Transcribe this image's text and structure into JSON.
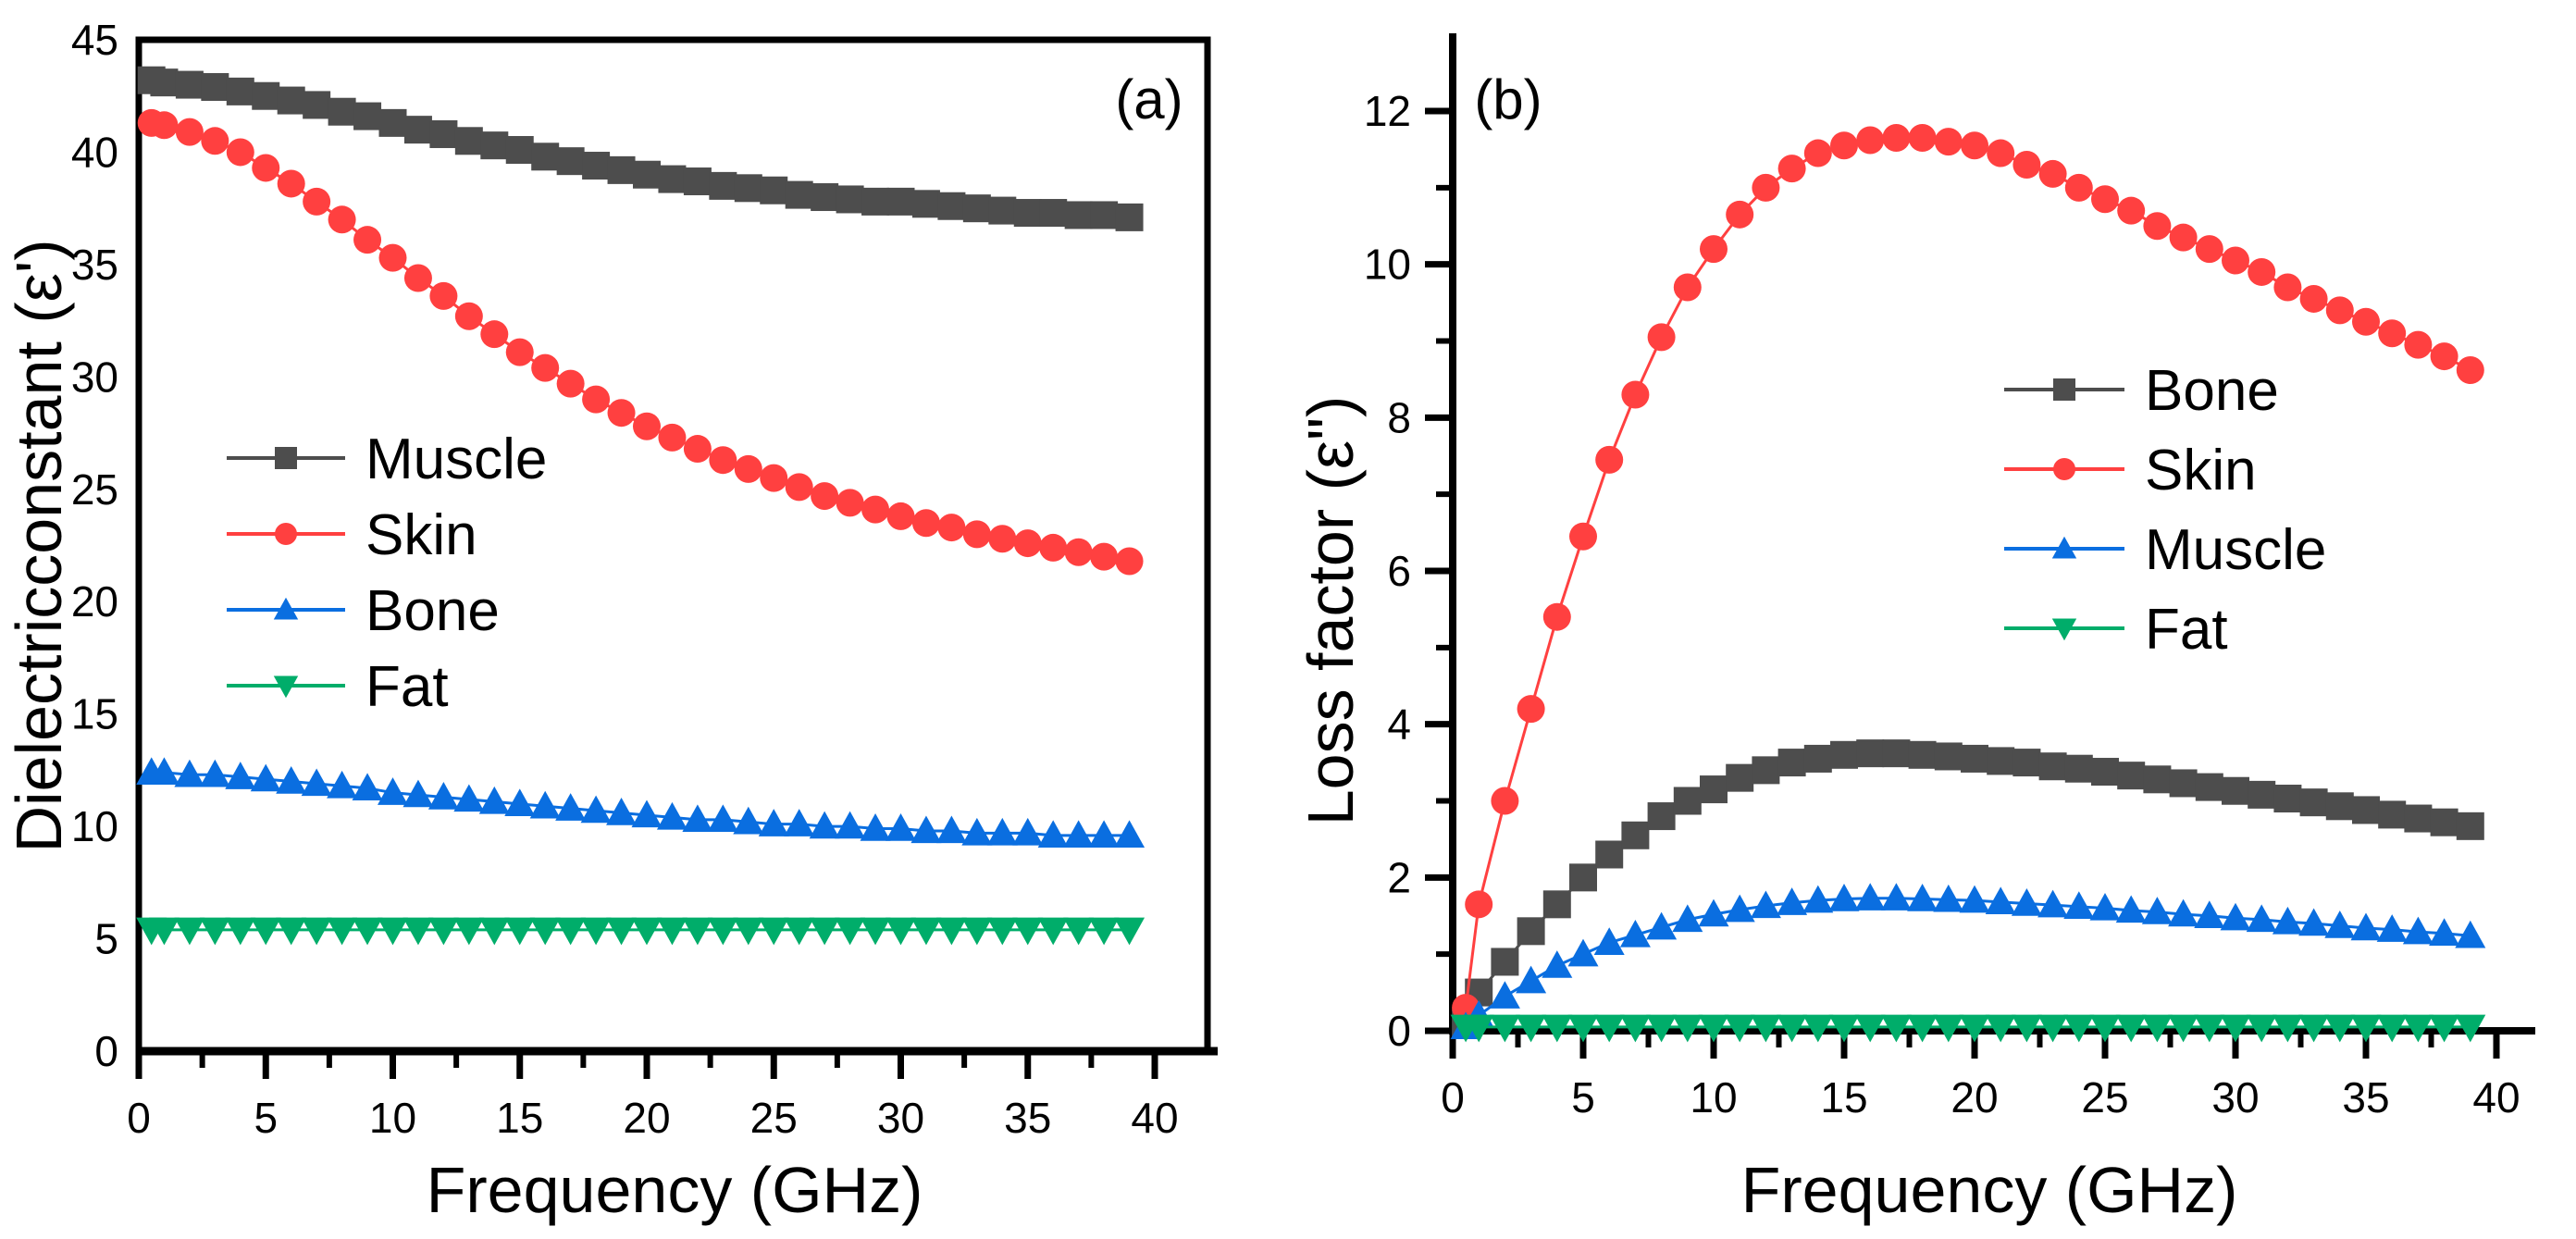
{
  "chart_data": [
    {
      "type": "line",
      "panel_label": "(a)",
      "xlabel": "Frequency (GHz)",
      "ylabel": "Dielectricconstant (ε')",
      "xlim": [
        0,
        42
      ],
      "ylim": [
        0,
        45
      ],
      "xticks": [
        0,
        5,
        10,
        15,
        20,
        25,
        30,
        35,
        40
      ],
      "yticks": [
        0,
        5,
        10,
        15,
        20,
        25,
        30,
        35,
        40,
        45
      ],
      "legend_position": "center-left",
      "x": [
        0.5,
        1,
        2,
        3,
        4,
        5,
        6,
        7,
        8,
        9,
        10,
        11,
        12,
        13,
        14,
        15,
        16,
        17,
        18,
        19,
        20,
        21,
        22,
        23,
        24,
        25,
        26,
        27,
        28,
        29,
        30,
        31,
        32,
        33,
        34,
        35,
        36,
        37,
        38,
        39
      ],
      "series": [
        {
          "name": "Muscle",
          "color": "#4d4d4d",
          "marker": "square",
          "values": [
            43.2,
            43.1,
            43.0,
            42.9,
            42.7,
            42.5,
            42.3,
            42.1,
            41.8,
            41.6,
            41.3,
            41.0,
            40.8,
            40.5,
            40.3,
            40.1,
            39.8,
            39.6,
            39.4,
            39.2,
            39.0,
            38.8,
            38.7,
            38.5,
            38.4,
            38.3,
            38.1,
            38.0,
            37.9,
            37.8,
            37.8,
            37.7,
            37.6,
            37.5,
            37.4,
            37.3,
            37.3,
            37.2,
            37.2,
            37.1
          ]
        },
        {
          "name": "Skin",
          "color": "#ff4040",
          "marker": "circle",
          "values": [
            41.3,
            41.2,
            40.9,
            40.5,
            40.0,
            39.3,
            38.6,
            37.8,
            37.0,
            36.1,
            35.3,
            34.4,
            33.6,
            32.7,
            31.9,
            31.1,
            30.4,
            29.7,
            29.0,
            28.4,
            27.8,
            27.3,
            26.8,
            26.3,
            25.9,
            25.5,
            25.1,
            24.7,
            24.4,
            24.1,
            23.8,
            23.5,
            23.3,
            23.0,
            22.8,
            22.6,
            22.4,
            22.2,
            22.0,
            21.8
          ]
        },
        {
          "name": "Bone",
          "color": "#0a6ee0",
          "marker": "triangle-up",
          "values": [
            12.4,
            12.4,
            12.3,
            12.3,
            12.2,
            12.1,
            12.0,
            11.9,
            11.8,
            11.7,
            11.5,
            11.4,
            11.3,
            11.2,
            11.1,
            11.0,
            10.9,
            10.8,
            10.7,
            10.6,
            10.5,
            10.4,
            10.3,
            10.3,
            10.2,
            10.1,
            10.1,
            10.0,
            10.0,
            9.9,
            9.9,
            9.8,
            9.8,
            9.7,
            9.7,
            9.7,
            9.6,
            9.6,
            9.6,
            9.6
          ]
        },
        {
          "name": "Fat",
          "color": "#00ad6a",
          "marker": "triangle-down",
          "values": [
            5.4,
            5.4,
            5.4,
            5.4,
            5.4,
            5.4,
            5.4,
            5.4,
            5.4,
            5.4,
            5.4,
            5.4,
            5.4,
            5.4,
            5.4,
            5.4,
            5.4,
            5.4,
            5.4,
            5.4,
            5.4,
            5.4,
            5.4,
            5.4,
            5.4,
            5.4,
            5.4,
            5.4,
            5.4,
            5.4,
            5.4,
            5.4,
            5.4,
            5.4,
            5.4,
            5.4,
            5.4,
            5.4,
            5.4,
            5.4
          ]
        }
      ]
    },
    {
      "type": "line",
      "panel_label": "(b)",
      "xlabel": "Frequency (GHz)",
      "ylabel": "Loss factor (ε\")",
      "xlim": [
        0,
        41
      ],
      "ylim": [
        0,
        12.5
      ],
      "xticks": [
        0,
        5,
        10,
        15,
        20,
        25,
        30,
        35,
        40
      ],
      "yticks": [
        0,
        2,
        4,
        6,
        8,
        10,
        12
      ],
      "legend_position": "center-right",
      "x": [
        0.5,
        1,
        2,
        3,
        4,
        5,
        6,
        7,
        8,
        9,
        10,
        11,
        12,
        13,
        14,
        15,
        16,
        17,
        18,
        19,
        20,
        21,
        22,
        23,
        24,
        25,
        26,
        27,
        28,
        29,
        30,
        31,
        32,
        33,
        34,
        35,
        36,
        37,
        38,
        39
      ],
      "series": [
        {
          "name": "Bone",
          "color": "#4d4d4d",
          "marker": "square",
          "values": [
            0.1,
            0.5,
            0.9,
            1.3,
            1.65,
            2.0,
            2.3,
            2.55,
            2.8,
            3.0,
            3.15,
            3.3,
            3.4,
            3.5,
            3.55,
            3.6,
            3.62,
            3.62,
            3.6,
            3.58,
            3.55,
            3.52,
            3.5,
            3.45,
            3.42,
            3.38,
            3.33,
            3.28,
            3.23,
            3.18,
            3.13,
            3.08,
            3.03,
            2.98,
            2.93,
            2.88,
            2.82,
            2.77,
            2.72,
            2.67
          ]
        },
        {
          "name": "Skin",
          "color": "#ff4040",
          "marker": "circle",
          "values": [
            0.3,
            1.65,
            3.0,
            4.2,
            5.4,
            6.45,
            7.45,
            8.3,
            9.05,
            9.7,
            10.2,
            10.65,
            11.0,
            11.25,
            11.45,
            11.55,
            11.62,
            11.65,
            11.65,
            11.6,
            11.55,
            11.45,
            11.3,
            11.18,
            11.0,
            10.85,
            10.7,
            10.5,
            10.35,
            10.2,
            10.05,
            9.9,
            9.7,
            9.55,
            9.4,
            9.25,
            9.1,
            8.95,
            8.8,
            8.62
          ]
        },
        {
          "name": "Muscle",
          "color": "#0a6ee0",
          "marker": "triangle-up",
          "values": [
            0.05,
            0.2,
            0.45,
            0.65,
            0.85,
            1.0,
            1.15,
            1.25,
            1.35,
            1.45,
            1.52,
            1.58,
            1.63,
            1.67,
            1.7,
            1.72,
            1.73,
            1.73,
            1.72,
            1.71,
            1.7,
            1.68,
            1.66,
            1.64,
            1.62,
            1.6,
            1.57,
            1.55,
            1.52,
            1.5,
            1.47,
            1.45,
            1.42,
            1.4,
            1.37,
            1.34,
            1.32,
            1.29,
            1.27,
            1.24
          ]
        },
        {
          "name": "Fat",
          "color": "#00ad6a",
          "marker": "triangle-down",
          "values": [
            0.05,
            0.05,
            0.05,
            0.05,
            0.05,
            0.05,
            0.05,
            0.05,
            0.05,
            0.05,
            0.05,
            0.05,
            0.05,
            0.05,
            0.05,
            0.05,
            0.05,
            0.05,
            0.05,
            0.05,
            0.05,
            0.05,
            0.05,
            0.05,
            0.05,
            0.05,
            0.05,
            0.05,
            0.05,
            0.05,
            0.05,
            0.05,
            0.05,
            0.05,
            0.05,
            0.05,
            0.05,
            0.05,
            0.05,
            0.05
          ]
        }
      ]
    }
  ]
}
